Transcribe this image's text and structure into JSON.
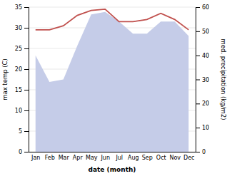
{
  "chart_data": {
    "type": "line",
    "categories": [
      "Jan",
      "Feb",
      "Mar",
      "Apr",
      "May",
      "Jun",
      "Jul",
      "Aug",
      "Sep",
      "Oct",
      "Nov",
      "Dec"
    ],
    "xlabel": "date (month)",
    "ylabel": "max temp (C)",
    "y2label": "med. precipitation (kg/m2)",
    "series": [
      {
        "type": "area",
        "axis": "y2",
        "color": "#c5cce8",
        "values": [
          40.0,
          29.0,
          30.0,
          44.0,
          57.0,
          58.0,
          54.0,
          49.0,
          49.0,
          54.0,
          54.0,
          48.0
        ]
      },
      {
        "type": "line",
        "color": "#c0504d",
        "values": [
          29.5,
          29.5,
          30.5,
          33.0,
          34.2,
          34.5,
          31.5,
          31.5,
          32.0,
          33.5,
          32.0,
          29.5
        ]
      }
    ],
    "ylim": [
      0,
      35
    ],
    "yticks": [
      0,
      5,
      10,
      15,
      20,
      25,
      30,
      35
    ],
    "y2lim": [
      0,
      60
    ],
    "y2ticks": [
      0,
      10,
      20,
      30,
      40,
      50,
      60
    ],
    "grid": true
  }
}
